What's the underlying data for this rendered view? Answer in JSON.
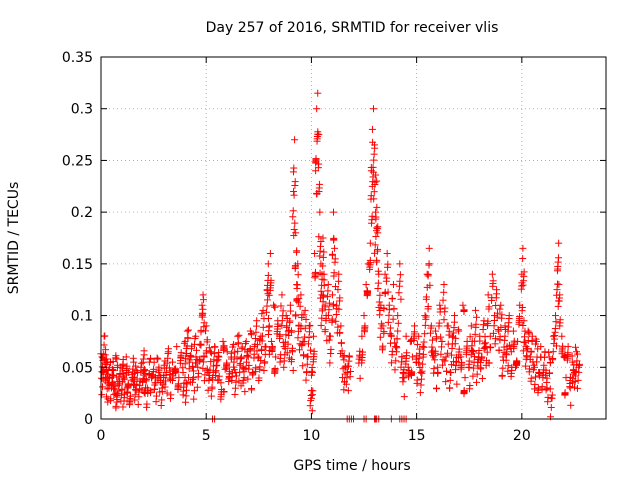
{
  "chart_data": {
    "type": "scatter",
    "title": "Day 257 of 2016, SRMTID for receiver vlis",
    "xlabel": "GPS time / hours",
    "ylabel": "SRMTID / TECUs",
    "xlim": [
      0,
      24
    ],
    "ylim": [
      0,
      0.35
    ],
    "x_ticks": [
      0,
      5,
      10,
      15,
      20
    ],
    "x_tick_labels": [
      "0",
      "5",
      "10",
      "15",
      "20"
    ],
    "y_ticks": [
      0,
      0.05,
      0.1,
      0.15,
      0.2,
      0.25,
      0.3,
      0.35
    ],
    "y_tick_labels": [
      "0",
      "0.05",
      "0.1",
      "0.15",
      "0.2",
      "0.25",
      "0.3",
      "0.35"
    ],
    "grid": true,
    "marker": "plus",
    "color": "#ff0000",
    "series": [
      {
        "name": "SRMTID",
        "points": [
          [
            0.05,
            0.06
          ],
          [
            0.1,
            0.045
          ],
          [
            0.15,
            0.08
          ],
          [
            0.2,
            0.062
          ],
          [
            0.25,
            0.04
          ],
          [
            0.3,
            0.055
          ],
          [
            0.35,
            0.035
          ],
          [
            0.4,
            0.05
          ],
          [
            0.5,
            0.03
          ],
          [
            0.55,
            0.048
          ],
          [
            0.6,
            0.042
          ],
          [
            0.7,
            0.025
          ],
          [
            0.75,
            0.058
          ],
          [
            0.8,
            0.036
          ],
          [
            0.9,
            0.044
          ],
          [
            1.0,
            0.028
          ],
          [
            1.05,
            0.052
          ],
          [
            1.1,
            0.038
          ],
          [
            1.2,
            0.06
          ],
          [
            1.25,
            0.03
          ],
          [
            1.3,
            0.045
          ],
          [
            1.4,
            0.022
          ],
          [
            1.5,
            0.04
          ],
          [
            1.55,
            0.055
          ],
          [
            1.6,
            0.033
          ],
          [
            1.7,
            0.047
          ],
          [
            1.8,
            0.026
          ],
          [
            1.9,
            0.05
          ],
          [
            2.0,
            0.038
          ],
          [
            2.05,
            0.062
          ],
          [
            2.1,
            0.044
          ],
          [
            2.2,
            0.03
          ],
          [
            2.3,
            0.055
          ],
          [
            2.4,
            0.04
          ],
          [
            2.5,
            0.048
          ],
          [
            2.6,
            0.035
          ],
          [
            2.7,
            0.058
          ],
          [
            2.8,
            0.042
          ],
          [
            2.9,
            0.03
          ],
          [
            3.0,
            0.052
          ],
          [
            3.1,
            0.045
          ],
          [
            3.2,
            0.065
          ],
          [
            3.3,
            0.038
          ],
          [
            3.4,
            0.055
          ],
          [
            3.5,
            0.048
          ],
          [
            3.6,
            0.07
          ],
          [
            3.7,
            0.04
          ],
          [
            3.8,
            0.06
          ],
          [
            3.9,
            0.045
          ],
          [
            4.0,
            0.075
          ],
          [
            4.05,
            0.035
          ],
          [
            4.1,
            0.085
          ],
          [
            4.2,
            0.055
          ],
          [
            4.3,
            0.068
          ],
          [
            4.4,
            0.04
          ],
          [
            4.5,
            0.08
          ],
          [
            4.6,
            0.05
          ],
          [
            4.7,
            0.072
          ],
          [
            4.8,
            0.11
          ],
          [
            4.85,
            0.12
          ],
          [
            4.9,
            0.06
          ],
          [
            5.0,
            0.09
          ],
          [
            5.1,
            0.045
          ],
          [
            5.2,
            0.065
          ],
          [
            5.3,
            0.04
          ],
          [
            5.4,
            0.07
          ],
          [
            5.5,
            0.052
          ],
          [
            5.6,
            0.06
          ],
          [
            5.7,
            0.035
          ],
          [
            5.8,
            0.075
          ],
          [
            5.9,
            0.048
          ],
          [
            6.0,
            0.065
          ],
          [
            6.1,
            0.04
          ],
          [
            6.2,
            0.058
          ],
          [
            6.3,
            0.072
          ],
          [
            6.4,
            0.045
          ],
          [
            6.5,
            0.08
          ],
          [
            6.6,
            0.052
          ],
          [
            6.7,
            0.068
          ],
          [
            6.8,
            0.04
          ],
          [
            6.9,
            0.075
          ],
          [
            7.0,
            0.06
          ],
          [
            7.1,
            0.085
          ],
          [
            7.2,
            0.045
          ],
          [
            7.3,
            0.07
          ],
          [
            7.4,
            0.095
          ],
          [
            7.5,
            0.06
          ],
          [
            7.6,
            0.08
          ],
          [
            7.7,
            0.105
          ],
          [
            7.8,
            0.07
          ],
          [
            7.9,
            0.125
          ],
          [
            7.95,
            0.15
          ],
          [
            8.0,
            0.09
          ],
          [
            8.05,
            0.16
          ],
          [
            8.1,
            0.075
          ],
          [
            8.2,
            0.11
          ],
          [
            8.3,
            0.06
          ],
          [
            8.4,
            0.095
          ],
          [
            8.5,
            0.08
          ],
          [
            8.6,
            0.12
          ],
          [
            8.7,
            0.07
          ],
          [
            8.8,
            0.1
          ],
          [
            8.9,
            0.085
          ],
          [
            9.0,
            0.11
          ],
          [
            9.1,
            0.065
          ],
          [
            9.15,
            0.22
          ],
          [
            9.2,
            0.27
          ],
          [
            9.25,
            0.18
          ],
          [
            9.3,
            0.13
          ],
          [
            9.35,
            0.15
          ],
          [
            9.4,
            0.09
          ],
          [
            9.5,
            0.12
          ],
          [
            9.6,
            0.075
          ],
          [
            9.7,
            0.105
          ],
          [
            9.8,
            0.06
          ],
          [
            9.9,
            0.09
          ],
          [
            10.0,
            0.02
          ],
          [
            10.05,
            0.045
          ],
          [
            10.1,
            0.08
          ],
          [
            10.15,
            0.16
          ],
          [
            10.2,
            0.24
          ],
          [
            10.25,
            0.3
          ],
          [
            10.3,
            0.315
          ],
          [
            10.35,
            0.275
          ],
          [
            10.4,
            0.2
          ],
          [
            10.45,
            0.15
          ],
          [
            10.5,
            0.12
          ],
          [
            10.55,
            0.175
          ],
          [
            10.6,
            0.14
          ],
          [
            10.7,
            0.1
          ],
          [
            10.8,
            0.13
          ],
          [
            10.9,
            0.08
          ],
          [
            11.0,
            0.12
          ],
          [
            11.05,
            0.2
          ],
          [
            11.1,
            0.165
          ],
          [
            11.2,
            0.11
          ],
          [
            11.3,
            0.14
          ],
          [
            11.4,
            0.09
          ],
          [
            11.5,
            0.06
          ],
          [
            11.6,
            0.05
          ],
          [
            11.7,
            0.045
          ],
          [
            11.8,
            0.06
          ],
          [
            12.3,
            0.06
          ],
          [
            12.4,
            0.08
          ],
          [
            12.5,
            0.1
          ],
          [
            12.6,
            0.13
          ],
          [
            12.7,
            0.15
          ],
          [
            12.8,
            0.17
          ],
          [
            12.85,
            0.24
          ],
          [
            12.9,
            0.28
          ],
          [
            12.95,
            0.3
          ],
          [
            13.0,
            0.265
          ],
          [
            13.05,
            0.2
          ],
          [
            13.1,
            0.23
          ],
          [
            13.15,
            0.18
          ],
          [
            13.2,
            0.14
          ],
          [
            13.3,
            0.11
          ],
          [
            13.4,
            0.09
          ],
          [
            13.5,
            0.14
          ],
          [
            13.6,
            0.16
          ],
          [
            13.7,
            0.11
          ],
          [
            13.8,
            0.08
          ],
          [
            13.9,
            0.13
          ],
          [
            14.0,
            0.07
          ],
          [
            14.1,
            0.1
          ],
          [
            14.2,
            0.15
          ],
          [
            14.3,
            0.06
          ],
          [
            14.4,
            0.04
          ],
          [
            14.5,
            0.08
          ],
          [
            14.6,
            0.05
          ],
          [
            14.7,
            0.075
          ],
          [
            14.8,
            0.06
          ],
          [
            14.9,
            0.09
          ],
          [
            15.0,
            0.055
          ],
          [
            15.1,
            0.08
          ],
          [
            15.2,
            0.045
          ],
          [
            15.3,
            0.07
          ],
          [
            15.4,
            0.1
          ],
          [
            15.5,
            0.14
          ],
          [
            15.6,
            0.165
          ],
          [
            15.7,
            0.09
          ],
          [
            15.8,
            0.06
          ],
          [
            15.9,
            0.085
          ],
          [
            16.0,
            0.05
          ],
          [
            16.1,
            0.11
          ],
          [
            16.2,
            0.075
          ],
          [
            16.3,
            0.13
          ],
          [
            16.4,
            0.06
          ],
          [
            16.5,
            0.09
          ],
          [
            16.6,
            0.045
          ],
          [
            16.7,
            0.08
          ],
          [
            16.8,
            0.1
          ],
          [
            16.9,
            0.055
          ],
          [
            17.0,
            0.085
          ],
          [
            17.1,
            0.06
          ],
          [
            17.2,
            0.11
          ],
          [
            17.3,
            0.04
          ],
          [
            17.4,
            0.075
          ],
          [
            17.5,
            0.05
          ],
          [
            17.6,
            0.09
          ],
          [
            17.7,
            0.065
          ],
          [
            17.8,
            0.105
          ],
          [
            17.9,
            0.055
          ],
          [
            18.0,
            0.08
          ],
          [
            18.1,
            0.06
          ],
          [
            18.2,
            0.095
          ],
          [
            18.3,
            0.07
          ],
          [
            18.4,
            0.12
          ],
          [
            18.5,
            0.08
          ],
          [
            18.6,
            0.14
          ],
          [
            18.7,
            0.1
          ],
          [
            18.8,
            0.125
          ],
          [
            18.9,
            0.085
          ],
          [
            19.0,
            0.11
          ],
          [
            19.1,
            0.06
          ],
          [
            19.2,
            0.09
          ],
          [
            19.3,
            0.07
          ],
          [
            19.4,
            0.1
          ],
          [
            19.5,
            0.065
          ],
          [
            19.6,
            0.085
          ],
          [
            19.7,
            0.05
          ],
          [
            19.8,
            0.075
          ],
          [
            19.9,
            0.11
          ],
          [
            20.0,
            0.14
          ],
          [
            20.05,
            0.165
          ],
          [
            20.1,
            0.095
          ],
          [
            20.2,
            0.07
          ],
          [
            20.3,
            0.085
          ],
          [
            20.4,
            0.06
          ],
          [
            20.5,
            0.08
          ],
          [
            20.6,
            0.05
          ],
          [
            20.7,
            0.075
          ],
          [
            20.8,
            0.045
          ],
          [
            20.9,
            0.07
          ],
          [
            21.0,
            0.04
          ],
          [
            21.1,
            0.065
          ],
          [
            21.2,
            0.03
          ],
          [
            21.3,
            0.06
          ],
          [
            21.4,
            0.02
          ],
          [
            21.5,
            0.08
          ],
          [
            21.6,
            0.1
          ],
          [
            21.7,
            0.145
          ],
          [
            21.75,
            0.17
          ],
          [
            21.8,
            0.12
          ],
          [
            21.9,
            0.08
          ],
          [
            22.0,
            0.06
          ],
          [
            22.1,
            0.04
          ],
          [
            22.2,
            0.07
          ],
          [
            22.3,
            0.03
          ],
          [
            22.4,
            0.055
          ],
          [
            22.5,
            0.045
          ],
          [
            22.6,
            0.065
          ],
          [
            22.7,
            0.05
          ]
        ]
      }
    ],
    "zero_points_x": [
      5.3,
      5.4,
      11.7,
      11.8,
      11.9,
      12.0,
      12.5,
      12.6,
      13.0,
      13.05,
      13.1,
      13.2,
      13.8,
      14.2,
      14.3,
      14.4,
      14.5
    ]
  }
}
